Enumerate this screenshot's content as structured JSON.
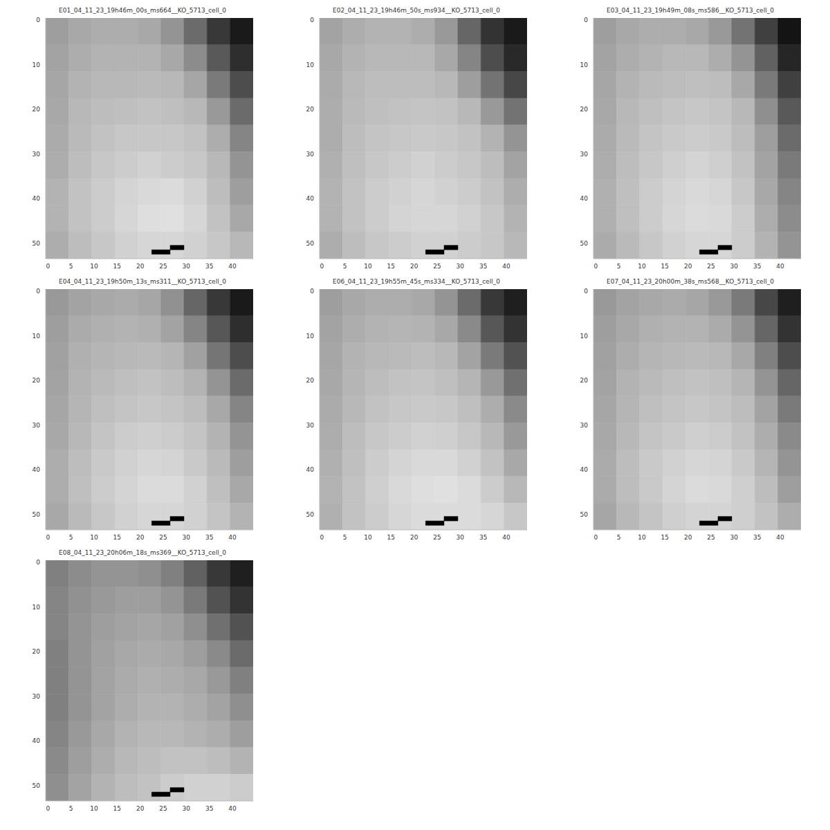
{
  "chart_data": [
    {
      "type": "heatmap",
      "title": "E01_04_11_23_19h46m_00s_ms664__KO_5713_cell_0",
      "xlim": [
        -0.5,
        44.5
      ],
      "ylim": [
        53.5,
        -0.5
      ],
      "xticks": [
        0,
        5,
        10,
        15,
        20,
        25,
        30,
        35,
        40
      ],
      "yticks": [
        0,
        10,
        20,
        30,
        40,
        50
      ],
      "grid": false,
      "color": "gray",
      "zlim": [
        0,
        1
      ],
      "x_edges": [
        -0.5,
        4.5,
        9.5,
        14.5,
        19.5,
        24.5,
        29.5,
        34.5,
        39.5,
        44.5
      ],
      "y_edges": [
        -0.5,
        5.5,
        11.5,
        17.5,
        23.5,
        29.5,
        35.5,
        41.5,
        47.5,
        53.5
      ],
      "cells": [
        [
          0.62,
          0.66,
          0.68,
          0.68,
          0.66,
          0.58,
          0.42,
          0.22,
          0.1
        ],
        [
          0.64,
          0.68,
          0.7,
          0.7,
          0.7,
          0.66,
          0.55,
          0.35,
          0.18
        ],
        [
          0.65,
          0.7,
          0.72,
          0.72,
          0.73,
          0.72,
          0.65,
          0.48,
          0.3
        ],
        [
          0.66,
          0.72,
          0.74,
          0.75,
          0.76,
          0.75,
          0.72,
          0.6,
          0.42
        ],
        [
          0.67,
          0.73,
          0.76,
          0.78,
          0.78,
          0.78,
          0.76,
          0.68,
          0.52
        ],
        [
          0.68,
          0.74,
          0.78,
          0.8,
          0.82,
          0.8,
          0.78,
          0.72,
          0.58
        ],
        [
          0.7,
          0.76,
          0.8,
          0.83,
          0.85,
          0.86,
          0.82,
          0.74,
          0.62
        ],
        [
          0.7,
          0.76,
          0.8,
          0.84,
          0.87,
          0.88,
          0.84,
          0.76,
          0.66
        ],
        [
          0.68,
          0.74,
          0.78,
          0.82,
          0.84,
          0.84,
          0.82,
          0.78,
          0.72
        ]
      ],
      "dark_pixels": [
        {
          "x": [
            22.5,
            26.5
          ],
          "y": [
            51.5,
            52.5
          ],
          "value": 0
        },
        {
          "x": [
            26.5,
            29.5
          ],
          "y": [
            50.5,
            51.5
          ],
          "value": 0
        }
      ]
    },
    {
      "type": "heatmap",
      "title": "E02_04_11_23_19h46m_50s_ms934__KO_5713_cell_0",
      "xlim": [
        -0.5,
        44.5
      ],
      "ylim": [
        53.5,
        -0.5
      ],
      "xticks": [
        0,
        5,
        10,
        15,
        20,
        25,
        30,
        35,
        40
      ],
      "yticks": [
        0,
        10,
        20,
        30,
        40,
        50
      ],
      "grid": false,
      "color": "gray",
      "zlim": [
        0,
        1
      ],
      "x_edges": [
        -0.5,
        4.5,
        9.5,
        14.5,
        19.5,
        24.5,
        29.5,
        34.5,
        39.5,
        44.5
      ],
      "y_edges": [
        -0.5,
        5.5,
        11.5,
        17.5,
        23.5,
        29.5,
        35.5,
        41.5,
        47.5,
        53.5
      ],
      "cells": [
        [
          0.64,
          0.68,
          0.7,
          0.7,
          0.68,
          0.6,
          0.4,
          0.2,
          0.1
        ],
        [
          0.66,
          0.7,
          0.72,
          0.72,
          0.72,
          0.66,
          0.52,
          0.3,
          0.16
        ],
        [
          0.67,
          0.72,
          0.74,
          0.74,
          0.74,
          0.72,
          0.62,
          0.45,
          0.28
        ],
        [
          0.68,
          0.73,
          0.75,
          0.76,
          0.77,
          0.76,
          0.72,
          0.6,
          0.45
        ],
        [
          0.68,
          0.74,
          0.77,
          0.78,
          0.79,
          0.78,
          0.76,
          0.7,
          0.58
        ],
        [
          0.69,
          0.75,
          0.78,
          0.8,
          0.82,
          0.8,
          0.78,
          0.74,
          0.64
        ],
        [
          0.7,
          0.76,
          0.8,
          0.82,
          0.84,
          0.82,
          0.8,
          0.76,
          0.68
        ],
        [
          0.7,
          0.76,
          0.8,
          0.83,
          0.84,
          0.84,
          0.82,
          0.78,
          0.7
        ],
        [
          0.68,
          0.74,
          0.78,
          0.8,
          0.82,
          0.82,
          0.8,
          0.78,
          0.72
        ]
      ],
      "dark_pixels": [
        {
          "x": [
            22.5,
            26.5
          ],
          "y": [
            51.5,
            52.5
          ],
          "value": 0
        },
        {
          "x": [
            26.5,
            29.5
          ],
          "y": [
            50.5,
            51.5
          ],
          "value": 0
        }
      ]
    },
    {
      "type": "heatmap",
      "title": "E03_04_11_23_19h49m_08s_ms586__KO_5713_cell_0",
      "xlim": [
        -0.5,
        44.5
      ],
      "ylim": [
        53.5,
        -0.5
      ],
      "xticks": [
        0,
        5,
        10,
        15,
        20,
        25,
        30,
        35,
        40
      ],
      "yticks": [
        0,
        10,
        20,
        30,
        40,
        50
      ],
      "grid": false,
      "color": "gray",
      "zlim": [
        0,
        1
      ],
      "x_edges": [
        -0.5,
        4.5,
        9.5,
        14.5,
        19.5,
        24.5,
        29.5,
        34.5,
        39.5,
        44.5
      ],
      "y_edges": [
        -0.5,
        5.5,
        11.5,
        17.5,
        23.5,
        29.5,
        35.5,
        41.5,
        47.5,
        53.5
      ],
      "cells": [
        [
          0.62,
          0.66,
          0.68,
          0.68,
          0.66,
          0.6,
          0.45,
          0.25,
          0.08
        ],
        [
          0.64,
          0.68,
          0.7,
          0.72,
          0.72,
          0.68,
          0.58,
          0.38,
          0.15
        ],
        [
          0.65,
          0.7,
          0.73,
          0.74,
          0.75,
          0.74,
          0.66,
          0.48,
          0.25
        ],
        [
          0.66,
          0.72,
          0.75,
          0.77,
          0.78,
          0.77,
          0.72,
          0.56,
          0.35
        ],
        [
          0.67,
          0.73,
          0.77,
          0.79,
          0.8,
          0.79,
          0.74,
          0.62,
          0.42
        ],
        [
          0.68,
          0.74,
          0.78,
          0.81,
          0.83,
          0.81,
          0.76,
          0.64,
          0.48
        ],
        [
          0.69,
          0.75,
          0.8,
          0.83,
          0.85,
          0.84,
          0.78,
          0.66,
          0.52
        ],
        [
          0.69,
          0.75,
          0.8,
          0.84,
          0.86,
          0.85,
          0.8,
          0.68,
          0.55
        ],
        [
          0.67,
          0.73,
          0.78,
          0.82,
          0.84,
          0.84,
          0.8,
          0.7,
          0.58
        ]
      ],
      "dark_pixels": [
        {
          "x": [
            22.5,
            26.5
          ],
          "y": [
            51.5,
            52.5
          ],
          "value": 0
        },
        {
          "x": [
            26.5,
            29.5
          ],
          "y": [
            50.5,
            51.5
          ],
          "value": 0
        }
      ]
    },
    {
      "type": "heatmap",
      "title": "E04_04_11_23_19h50m_13s_ms311__KO_5713_cell_0",
      "xlim": [
        -0.5,
        44.5
      ],
      "ylim": [
        53.5,
        -0.5
      ],
      "xticks": [
        0,
        5,
        10,
        15,
        20,
        25,
        30,
        35,
        40
      ],
      "yticks": [
        0,
        10,
        20,
        30,
        40,
        50
      ],
      "grid": false,
      "color": "gray",
      "zlim": [
        0,
        1
      ],
      "x_edges": [
        -0.5,
        4.5,
        9.5,
        14.5,
        19.5,
        24.5,
        29.5,
        34.5,
        39.5,
        44.5
      ],
      "y_edges": [
        -0.5,
        5.5,
        11.5,
        17.5,
        23.5,
        29.5,
        35.5,
        41.5,
        47.5,
        53.5
      ],
      "cells": [
        [
          0.6,
          0.64,
          0.66,
          0.67,
          0.65,
          0.57,
          0.4,
          0.22,
          0.1
        ],
        [
          0.62,
          0.67,
          0.69,
          0.7,
          0.69,
          0.64,
          0.52,
          0.34,
          0.18
        ],
        [
          0.63,
          0.69,
          0.71,
          0.72,
          0.73,
          0.71,
          0.63,
          0.46,
          0.3
        ],
        [
          0.64,
          0.7,
          0.73,
          0.75,
          0.76,
          0.74,
          0.7,
          0.58,
          0.42
        ],
        [
          0.65,
          0.71,
          0.75,
          0.77,
          0.78,
          0.77,
          0.74,
          0.66,
          0.52
        ],
        [
          0.66,
          0.72,
          0.77,
          0.8,
          0.81,
          0.8,
          0.77,
          0.7,
          0.58
        ],
        [
          0.68,
          0.74,
          0.79,
          0.82,
          0.84,
          0.83,
          0.79,
          0.73,
          0.62
        ],
        [
          0.68,
          0.75,
          0.8,
          0.83,
          0.86,
          0.86,
          0.82,
          0.75,
          0.66
        ],
        [
          0.66,
          0.73,
          0.78,
          0.82,
          0.84,
          0.84,
          0.82,
          0.77,
          0.7
        ]
      ],
      "dark_pixels": [
        {
          "x": [
            22.5,
            26.5
          ],
          "y": [
            51.5,
            52.5
          ],
          "value": 0
        },
        {
          "x": [
            26.5,
            29.5
          ],
          "y": [
            50.5,
            51.5
          ],
          "value": 0
        }
      ]
    },
    {
      "type": "heatmap",
      "title": "E06_04_11_23_19h55m_45s_ms334__KO_5713_cell_0",
      "xlim": [
        -0.5,
        44.5
      ],
      "ylim": [
        53.5,
        -0.5
      ],
      "xticks": [
        0,
        5,
        10,
        15,
        20,
        25,
        30,
        35,
        40
      ],
      "yticks": [
        0,
        10,
        20,
        30,
        40,
        50
      ],
      "grid": false,
      "color": "gray",
      "zlim": [
        0,
        1
      ],
      "x_edges": [
        -0.5,
        4.5,
        9.5,
        14.5,
        19.5,
        24.5,
        29.5,
        34.5,
        39.5,
        44.5
      ],
      "y_edges": [
        -0.5,
        5.5,
        11.5,
        17.5,
        23.5,
        29.5,
        35.5,
        41.5,
        47.5,
        53.5
      ],
      "cells": [
        [
          0.62,
          0.66,
          0.68,
          0.68,
          0.66,
          0.58,
          0.42,
          0.22,
          0.12
        ],
        [
          0.64,
          0.68,
          0.7,
          0.71,
          0.7,
          0.66,
          0.54,
          0.34,
          0.2
        ],
        [
          0.65,
          0.7,
          0.72,
          0.73,
          0.74,
          0.72,
          0.64,
          0.48,
          0.32
        ],
        [
          0.66,
          0.71,
          0.74,
          0.76,
          0.77,
          0.75,
          0.71,
          0.6,
          0.44
        ],
        [
          0.67,
          0.72,
          0.76,
          0.78,
          0.79,
          0.78,
          0.75,
          0.68,
          0.54
        ],
        [
          0.68,
          0.74,
          0.78,
          0.8,
          0.82,
          0.81,
          0.78,
          0.72,
          0.6
        ],
        [
          0.69,
          0.75,
          0.8,
          0.83,
          0.85,
          0.85,
          0.82,
          0.76,
          0.66
        ],
        [
          0.7,
          0.76,
          0.81,
          0.85,
          0.87,
          0.88,
          0.86,
          0.8,
          0.72
        ],
        [
          0.69,
          0.76,
          0.8,
          0.84,
          0.86,
          0.86,
          0.86,
          0.84,
          0.78
        ]
      ],
      "dark_pixels": [
        {
          "x": [
            22.5,
            26.5
          ],
          "y": [
            51.5,
            52.5
          ],
          "value": 0
        },
        {
          "x": [
            26.5,
            29.5
          ],
          "y": [
            50.5,
            51.5
          ],
          "value": 0
        }
      ]
    },
    {
      "type": "heatmap",
      "title": "E07_04_11_23_20h00m_38s_ms568__KO_5713_cell_0",
      "xlim": [
        -0.5,
        44.5
      ],
      "ylim": [
        53.5,
        -0.5
      ],
      "xticks": [
        0,
        5,
        10,
        15,
        20,
        25,
        30,
        35,
        40
      ],
      "yticks": [
        0,
        10,
        20,
        30,
        40,
        50
      ],
      "grid": false,
      "color": "gray",
      "zlim": [
        0,
        1
      ],
      "x_edges": [
        -0.5,
        4.5,
        9.5,
        14.5,
        19.5,
        24.5,
        29.5,
        34.5,
        39.5,
        44.5
      ],
      "y_edges": [
        -0.5,
        5.5,
        11.5,
        17.5,
        23.5,
        29.5,
        35.5,
        41.5,
        47.5,
        53.5
      ],
      "cells": [
        [
          0.6,
          0.64,
          0.66,
          0.67,
          0.65,
          0.6,
          0.48,
          0.28,
          0.12
        ],
        [
          0.62,
          0.66,
          0.69,
          0.7,
          0.7,
          0.67,
          0.58,
          0.4,
          0.2
        ],
        [
          0.63,
          0.68,
          0.71,
          0.72,
          0.73,
          0.72,
          0.66,
          0.5,
          0.3
        ],
        [
          0.64,
          0.7,
          0.73,
          0.75,
          0.76,
          0.75,
          0.71,
          0.58,
          0.4
        ],
        [
          0.65,
          0.71,
          0.75,
          0.77,
          0.78,
          0.77,
          0.74,
          0.64,
          0.48
        ],
        [
          0.66,
          0.72,
          0.77,
          0.79,
          0.81,
          0.8,
          0.76,
          0.68,
          0.54
        ],
        [
          0.67,
          0.74,
          0.79,
          0.82,
          0.84,
          0.83,
          0.79,
          0.71,
          0.58
        ],
        [
          0.67,
          0.74,
          0.79,
          0.83,
          0.86,
          0.85,
          0.81,
          0.74,
          0.62
        ],
        [
          0.65,
          0.72,
          0.77,
          0.81,
          0.83,
          0.83,
          0.81,
          0.76,
          0.68
        ]
      ],
      "dark_pixels": [
        {
          "x": [
            22.5,
            26.5
          ],
          "y": [
            51.5,
            52.5
          ],
          "value": 0
        },
        {
          "x": [
            26.5,
            29.5
          ],
          "y": [
            50.5,
            51.5
          ],
          "value": 0
        }
      ]
    },
    {
      "type": "heatmap",
      "title": "E08_04_11_23_20h06m_18s_ms369__KO_5713_cell_0",
      "xlim": [
        -0.5,
        44.5
      ],
      "ylim": [
        53.5,
        -0.5
      ],
      "xticks": [
        0,
        5,
        10,
        15,
        20,
        25,
        30,
        35,
        40
      ],
      "yticks": [
        0,
        10,
        20,
        30,
        40,
        50
      ],
      "grid": false,
      "color": "gray",
      "zlim": [
        0,
        1
      ],
      "x_edges": [
        -0.5,
        4.5,
        9.5,
        14.5,
        19.5,
        24.5,
        29.5,
        34.5,
        39.5,
        44.5
      ],
      "y_edges": [
        -0.5,
        5.5,
        11.5,
        17.5,
        23.5,
        29.5,
        35.5,
        41.5,
        47.5,
        53.5
      ],
      "cells": [
        [
          0.5,
          0.55,
          0.58,
          0.58,
          0.56,
          0.5,
          0.38,
          0.22,
          0.12
        ],
        [
          0.52,
          0.57,
          0.6,
          0.62,
          0.62,
          0.58,
          0.48,
          0.32,
          0.2
        ],
        [
          0.52,
          0.58,
          0.62,
          0.64,
          0.65,
          0.63,
          0.56,
          0.44,
          0.32
        ],
        [
          0.5,
          0.58,
          0.63,
          0.66,
          0.67,
          0.66,
          0.62,
          0.54,
          0.42
        ],
        [
          0.5,
          0.58,
          0.64,
          0.67,
          0.69,
          0.68,
          0.66,
          0.6,
          0.5
        ],
        [
          0.5,
          0.58,
          0.64,
          0.68,
          0.7,
          0.7,
          0.68,
          0.64,
          0.56
        ],
        [
          0.52,
          0.6,
          0.66,
          0.7,
          0.72,
          0.72,
          0.7,
          0.68,
          0.62
        ],
        [
          0.54,
          0.62,
          0.68,
          0.72,
          0.74,
          0.76,
          0.76,
          0.74,
          0.7
        ],
        [
          0.56,
          0.64,
          0.7,
          0.74,
          0.76,
          0.8,
          0.82,
          0.82,
          0.8
        ]
      ],
      "dark_pixels": [
        {
          "x": [
            22.5,
            26.5
          ],
          "y": [
            51.5,
            52.5
          ],
          "value": 0
        },
        {
          "x": [
            26.5,
            29.5
          ],
          "y": [
            50.5,
            51.5
          ],
          "value": 0
        }
      ]
    }
  ]
}
